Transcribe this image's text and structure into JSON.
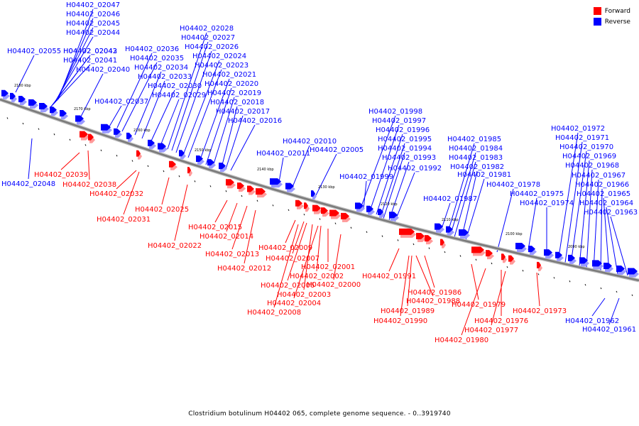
{
  "legend": [
    {
      "label": "Forward",
      "color": "#ff0000"
    },
    {
      "label": "Reverse",
      "color": "#0000ff"
    }
  ],
  "caption": "Clostridium botulinum H04402 065, complete genome sequence. - 0..3919740",
  "colors": {
    "forward": "#ff0000",
    "reverse": "#0000ff",
    "forward_shadow": "#ff9a9a",
    "reverse_shadow": "#9a9aff",
    "backbone": "#7a7a7a"
  },
  "ticks": [
    "2180 kbp",
    "2170 kbp",
    "2160 kbp",
    "2150 kbp",
    "2140 kbp",
    "2130 kbp",
    "2120 kbp",
    "2110 kbp",
    "2100 kbp",
    "2090 kbp"
  ],
  "forward_genes": [
    "H04402_02039",
    "H04402_02038",
    "H04402_02032",
    "H04402_02031",
    "H04402_02025",
    "H04402_02022",
    "H04402_02015",
    "H04402_02014",
    "H04402_02013",
    "H04402_02012",
    "H04402_02009",
    "H04402_02007",
    "H04402_02006",
    "H04402_02003",
    "H04402_02004",
    "H04402_02008",
    "H04402_02002",
    "H04402_02001",
    "H04402_02000",
    "H04402_01991",
    "H04402_01986",
    "H04402_01988",
    "H04402_01989",
    "H04402_01990",
    "H04402_01979",
    "H04402_01976",
    "H04402_01977",
    "H04402_01980",
    "H04402_01973"
  ],
  "reverse_genes": [
    "H04402_02047",
    "H04402_02046",
    "H04402_02045",
    "H04402_02044",
    "H04402_02043",
    "H04402_02042",
    "H04402_02041",
    "H04402_02040",
    "H04402_02055",
    "H04402_02036",
    "H04402_02035",
    "H04402_02034",
    "H04402_02033",
    "H04402_02030",
    "H04402_02029",
    "H04402_02037",
    "H04402_02028",
    "H04402_02027",
    "H04402_02026",
    "H04402_02024",
    "H04402_02023",
    "H04402_02021",
    "H04402_02020",
    "H04402_02019",
    "H04402_02018",
    "H04402_02017",
    "H04402_02016",
    "H04402_02010",
    "H04402_02011",
    "H04402_02005",
    "H04402_01998",
    "H04402_01997",
    "H04402_01996",
    "H04402_01995",
    "H04402_01994",
    "H04402_01993",
    "H04402_01992",
    "H04402_01999",
    "H04402_01985",
    "H04402_01984",
    "H04402_01983",
    "H04402_01982",
    "H04402_01981",
    "H04402_01987",
    "H04402_01978",
    "H04402_01975",
    "H04402_01974",
    "H04402_01972",
    "H04402_01971",
    "H04402_01970",
    "H04402_01969",
    "H04402_01968",
    "H04402_01967",
    "H04402_01966",
    "H04402_01965",
    "H04402_01964",
    "H04402_01963",
    "H04402_02048",
    "H04402_01962",
    "H04402_01961"
  ]
}
